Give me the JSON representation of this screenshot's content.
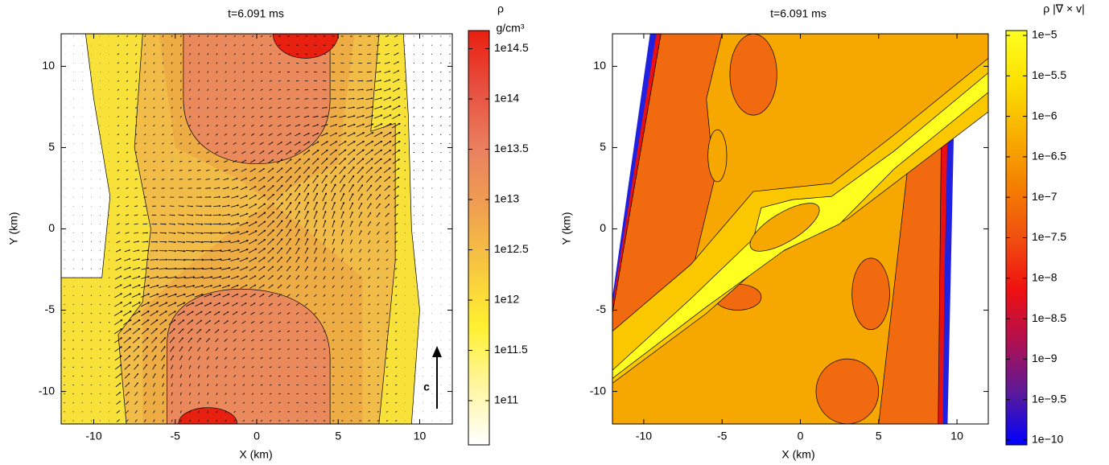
{
  "chart_data": [
    {
      "type": "contour",
      "title": "t=6.091 ms",
      "xlabel": "X (km)",
      "ylabel": "Y (km)",
      "xlim": [
        -12,
        12
      ],
      "ylim": [
        -12,
        12
      ],
      "xticks": [
        -10,
        -5,
        0,
        5,
        10
      ],
      "yticks": [
        -10,
        -5,
        0,
        5,
        10
      ],
      "annotation": "c",
      "colorbar": {
        "labels": [
          "ρ",
          "g/cm³"
        ],
        "scale": "log",
        "lim": [
          36300000000.0,
          479000000000000.0
        ],
        "ticks": [
          {
            "value": 100000000000.0,
            "label": "1e11"
          },
          {
            "value": 316227766016.84,
            "label": "1e11.5"
          },
          {
            "value": 1000000000000.0,
            "label": "1e12"
          },
          {
            "value": 3162277660168.38,
            "label": "1e12.5"
          },
          {
            "value": 10000000000000.0,
            "label": "1e13"
          },
          {
            "value": 31622776601683.8,
            "label": "1e13.5"
          },
          {
            "value": 100000000000000.0,
            "label": "1e14"
          },
          {
            "value": 316227766016838,
            "label": "1e14.5"
          }
        ],
        "colormap": [
          "#ffffff",
          "#fff6a0",
          "#fff030",
          "#f8c840",
          "#f0a050",
          "#ea8060",
          "#e85040",
          "#e82010"
        ]
      }
    },
    {
      "type": "contour",
      "title": "t=6.091 ms",
      "xlabel": "X (km)",
      "ylabel": "Y (km)",
      "xlim": [
        -12,
        12
      ],
      "ylim": [
        -12,
        12
      ],
      "xticks": [
        -10,
        -5,
        0,
        5,
        10
      ],
      "yticks": [
        -10,
        -5,
        0,
        5,
        10
      ],
      "colorbar": {
        "labels": [
          "ρ |∇ × v|"
        ],
        "scale": "log",
        "lim": [
          8.71e-11,
          1.148e-05
        ],
        "ticks": [
          {
            "value": 1e-10,
            "label": "1e−10"
          },
          {
            "value": 3.1623e-10,
            "label": "1e−9.5"
          },
          {
            "value": 1e-09,
            "label": "1e−9"
          },
          {
            "value": 3.1623e-09,
            "label": "1e−8.5"
          },
          {
            "value": 1e-08,
            "label": "1e−8"
          },
          {
            "value": 3.1623e-08,
            "label": "1e−7.5"
          },
          {
            "value": 1e-07,
            "label": "1e−7"
          },
          {
            "value": 3.1623e-07,
            "label": "1e−6.5"
          },
          {
            "value": 1e-06,
            "label": "1e−6"
          },
          {
            "value": 3.1623e-06,
            "label": "1e−5.5"
          },
          {
            "value": 1e-05,
            "label": "1e−5"
          }
        ],
        "colormap": [
          "#0000ff",
          "#5a1a9a",
          "#b01050",
          "#f01010",
          "#f05010",
          "#f48000",
          "#f8b000",
          "#fce000",
          "#ffff20"
        ]
      }
    }
  ]
}
